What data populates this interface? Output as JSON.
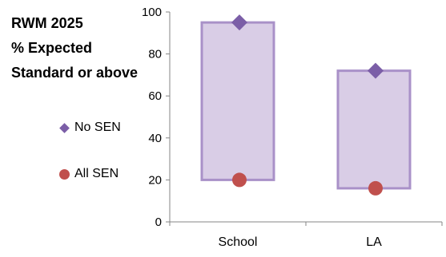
{
  "title_lines": [
    "RWM 2025",
    "% Expected",
    "Standard or above"
  ],
  "legend": [
    {
      "label": "No SEN",
      "marker": "diamond",
      "color": "#7b5ea7"
    },
    {
      "label": "All SEN",
      "marker": "circle",
      "color": "#c0504d"
    }
  ],
  "chart_data": {
    "type": "range-bar",
    "categories": [
      "School",
      "LA"
    ],
    "series": [
      {
        "name": "No SEN",
        "values": [
          95,
          72
        ]
      },
      {
        "name": "All SEN",
        "values": [
          20,
          16
        ]
      }
    ],
    "ylim": [
      0,
      100
    ],
    "yticks": [
      "0",
      "20",
      "40",
      "60",
      "80",
      "100"
    ],
    "grid": false,
    "bar_fill": "#d9cde6",
    "bar_border": "#a991c8",
    "axis_color": "#868686"
  }
}
